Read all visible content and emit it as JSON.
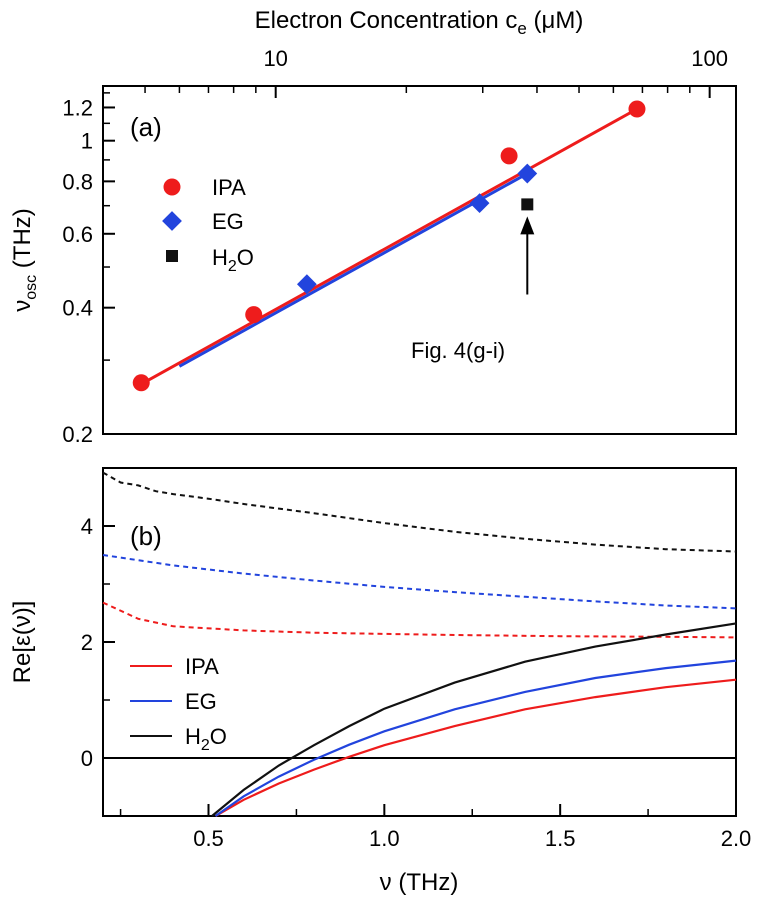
{
  "chart_data": [
    {
      "panel": "a",
      "type": "scatter",
      "panel_label": "(a)",
      "top_axis": {
        "label_main": "Electron Concentration c",
        "label_sub": "e",
        "label_unit": " (μM)",
        "scale": "log",
        "range": [
          4,
          115
        ],
        "ticks": [
          10,
          100
        ],
        "tick_labels": [
          "10",
          "100"
        ]
      },
      "y_axis": {
        "label_main": "ν",
        "label_sub": "osc",
        "label_unit": " (THz)",
        "scale": "log",
        "range": [
          0.2,
          1.35
        ],
        "ticks": [
          0.2,
          0.4,
          0.6,
          0.8,
          1,
          1.2
        ],
        "tick_labels": [
          "0.2",
          "0.4",
          "0.6",
          "0.8",
          "1",
          "1.2"
        ]
      },
      "series": [
        {
          "name": "IPA",
          "color": "#ee1c1c",
          "marker": "circle",
          "points": [
            [
              4.9,
              0.265
            ],
            [
              8.9,
              0.385
            ],
            [
              34.5,
              0.92
            ],
            [
              68.0,
              1.19
            ]
          ],
          "fit": [
            [
              4.9,
              0.263
            ],
            [
              68.0,
              1.19
            ]
          ]
        },
        {
          "name": "EG",
          "color": "#2244dd",
          "marker": "diamond",
          "points": [
            [
              11.8,
              0.455
            ],
            [
              29.5,
              0.71
            ],
            [
              38.0,
              0.835
            ]
          ],
          "fit": [
            [
              6.0,
              0.29
            ],
            [
              38.0,
              0.835
            ]
          ]
        },
        {
          "name": "H",
          "name_sub": "2",
          "name_tail": "O",
          "color": "#111111",
          "marker": "square",
          "points": [
            [
              38.0,
              0.705
            ]
          ]
        }
      ],
      "annotation": {
        "text": "Fig. 4(g-i)",
        "arrow_from": [
          38.0,
          0.43
        ],
        "arrow_to": [
          38.0,
          0.66
        ]
      }
    },
    {
      "panel": "b",
      "type": "line",
      "panel_label": "(b)",
      "x_axis": {
        "label": "ν (THz)",
        "range": [
          0.2,
          2.0
        ],
        "ticks": [
          0.5,
          1.0,
          1.5,
          2.0
        ],
        "tick_labels": [
          "0.5",
          "1.0",
          "1.5",
          "2.0"
        ]
      },
      "y_axis": {
        "label": "Re[ε(ν)]",
        "range": [
          -1,
          5
        ],
        "ticks": [
          0,
          2,
          4
        ],
        "tick_labels": [
          "0",
          "2",
          "4"
        ]
      },
      "zero_line": 0,
      "series": [
        {
          "name": "IPA",
          "color": "#ee1c1c",
          "dashed": {
            "x": [
              0.2,
              0.3,
              0.4,
              0.6,
              0.8,
              1.0,
              1.2,
              1.5,
              1.8,
              2.0
            ],
            "y": [
              2.68,
              2.4,
              2.27,
              2.2,
              2.16,
              2.14,
              2.12,
              2.1,
              2.09,
              2.08
            ]
          },
          "solid": {
            "x": [
              0.52,
              0.6,
              0.7,
              0.8,
              0.9,
              1.0,
              1.2,
              1.4,
              1.6,
              1.8,
              2.0
            ],
            "y": [
              -1.0,
              -0.72,
              -0.44,
              -0.2,
              0.02,
              0.22,
              0.55,
              0.84,
              1.05,
              1.22,
              1.35
            ]
          }
        },
        {
          "name": "EG",
          "color": "#2244dd",
          "dashed": {
            "x": [
              0.2,
              0.4,
              0.6,
              0.8,
              1.0,
              1.2,
              1.4,
              1.6,
              1.8,
              2.0
            ],
            "y": [
              3.5,
              3.32,
              3.18,
              3.06,
              2.95,
              2.86,
              2.78,
              2.7,
              2.63,
              2.58
            ]
          },
          "solid": {
            "x": [
              0.52,
              0.6,
              0.7,
              0.8,
              0.9,
              1.0,
              1.2,
              1.4,
              1.6,
              1.8,
              2.0
            ],
            "y": [
              -1.0,
              -0.66,
              -0.32,
              -0.03,
              0.23,
              0.46,
              0.84,
              1.14,
              1.38,
              1.55,
              1.68
            ]
          }
        },
        {
          "name": "H",
          "name_sub": "2",
          "name_tail": "O",
          "color": "#111111",
          "dashed": {
            "x": [
              0.2,
              0.25,
              0.3,
              0.35,
              0.4,
              0.5,
              0.6,
              0.8,
              1.0,
              1.2,
              1.4,
              1.6,
              1.8,
              2.0
            ],
            "y": [
              4.92,
              4.75,
              4.7,
              4.6,
              4.55,
              4.47,
              4.38,
              4.22,
              4.05,
              3.9,
              3.78,
              3.68,
              3.6,
              3.56
            ]
          },
          "solid": {
            "x": [
              0.51,
              0.6,
              0.7,
              0.8,
              0.9,
              1.0,
              1.2,
              1.4,
              1.6,
              1.8,
              2.0
            ],
            "y": [
              -1.0,
              -0.55,
              -0.13,
              0.22,
              0.55,
              0.85,
              1.3,
              1.66,
              1.92,
              2.13,
              2.32
            ]
          }
        }
      ]
    }
  ]
}
